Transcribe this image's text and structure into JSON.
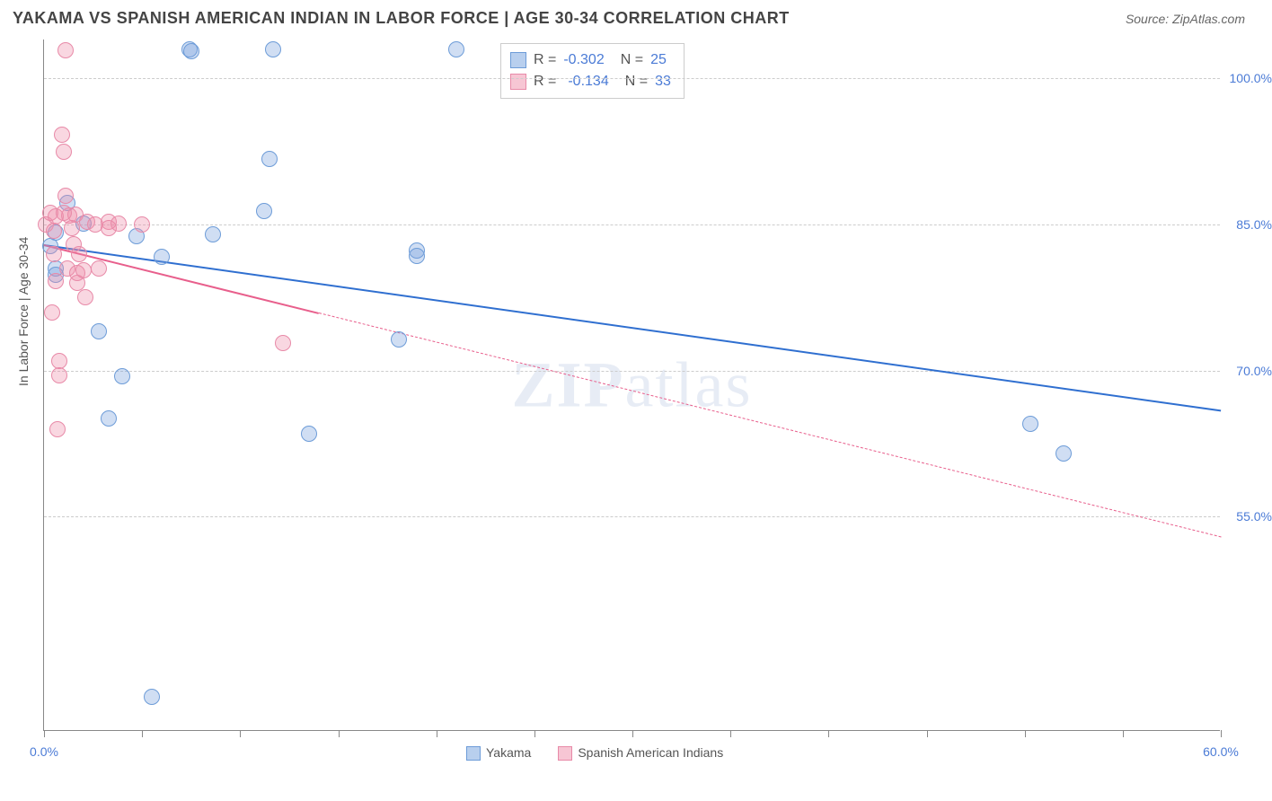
{
  "header": {
    "title": "YAKAMA VS SPANISH AMERICAN INDIAN IN LABOR FORCE | AGE 30-34 CORRELATION CHART",
    "source": "Source: ZipAtlas.com"
  },
  "chart": {
    "type": "scatter",
    "y_axis_title": "In Labor Force | Age 30-34",
    "background_color": "#ffffff",
    "grid_color": "#cccccc",
    "axis_label_color": "#4b7bd6",
    "xlim": [
      0,
      60
    ],
    "ylim": [
      33,
      104
    ],
    "y_ticks": [
      55.0,
      70.0,
      85.0,
      100.0
    ],
    "y_tick_labels": [
      "55.0%",
      "70.0%",
      "85.0%",
      "100.0%"
    ],
    "x_ticks": [
      0,
      5,
      10,
      15,
      20,
      25,
      30,
      35,
      40,
      45,
      50,
      55,
      60
    ],
    "x_tick_labels": {
      "0": "0.0%",
      "60": "60.0%"
    },
    "point_radius": 9,
    "point_stroke_width": 1.5,
    "watermark": "ZIPatlas",
    "series": [
      {
        "name": "Yakama",
        "color_fill": "rgba(120,160,220,0.35)",
        "color_stroke": "#6d9cd8",
        "swatch_fill": "#b8cfee",
        "swatch_border": "#6d9cd8",
        "r_value": "-0.302",
        "n_value": "25",
        "trend": {
          "x1": 0,
          "y1": 83.0,
          "x2": 60,
          "y2": 66.0,
          "color": "#2f6fd0",
          "width": 2,
          "solid_to_x": 60
        },
        "points": [
          [
            0.3,
            82.8
          ],
          [
            0.6,
            84.2
          ],
          [
            0.6,
            80.5
          ],
          [
            0.6,
            79.8
          ],
          [
            1.2,
            87.2
          ],
          [
            2.0,
            85.1
          ],
          [
            2.8,
            74.0
          ],
          [
            3.3,
            65.1
          ],
          [
            4.0,
            69.4
          ],
          [
            4.7,
            83.8
          ],
          [
            5.5,
            36.5
          ],
          [
            6.0,
            81.7
          ],
          [
            7.4,
            103.0
          ],
          [
            7.5,
            102.8
          ],
          [
            8.6,
            84.0
          ],
          [
            11.2,
            86.4
          ],
          [
            11.5,
            91.7
          ],
          [
            11.7,
            103.0
          ],
          [
            13.5,
            63.5
          ],
          [
            18.1,
            73.2
          ],
          [
            19.0,
            82.3
          ],
          [
            19.0,
            81.8
          ],
          [
            21.0,
            103.0
          ],
          [
            50.3,
            64.5
          ],
          [
            52.0,
            61.5
          ]
        ]
      },
      {
        "name": "Spanish American Indians",
        "color_fill": "rgba(238,140,170,0.35)",
        "color_stroke": "#e88aa8",
        "swatch_fill": "#f7c6d4",
        "swatch_border": "#e88aa8",
        "r_value": "-0.134",
        "n_value": "33",
        "trend": {
          "x1": 0,
          "y1": 83.0,
          "x2": 60,
          "y2": 53.0,
          "color": "#e85f8c",
          "width": 2,
          "solid_to_x": 14
        },
        "points": [
          [
            0.1,
            85.0
          ],
          [
            0.3,
            86.2
          ],
          [
            0.4,
            76.0
          ],
          [
            0.5,
            82.0
          ],
          [
            0.5,
            84.4
          ],
          [
            0.6,
            85.8
          ],
          [
            0.6,
            79.2
          ],
          [
            0.7,
            64.0
          ],
          [
            0.8,
            71.0
          ],
          [
            0.8,
            69.5
          ],
          [
            0.9,
            94.2
          ],
          [
            1.0,
            92.5
          ],
          [
            1.1,
            102.9
          ],
          [
            1.1,
            88.0
          ],
          [
            1.2,
            80.5
          ],
          [
            1.3,
            85.9
          ],
          [
            1.4,
            84.6
          ],
          [
            1.5,
            83.0
          ],
          [
            1.6,
            86.0
          ],
          [
            1.7,
            79.0
          ],
          [
            1.7,
            80.0
          ],
          [
            1.8,
            82.0
          ],
          [
            2.0,
            80.3
          ],
          [
            2.1,
            77.5
          ],
          [
            2.2,
            85.3
          ],
          [
            2.6,
            85.0
          ],
          [
            2.8,
            80.5
          ],
          [
            3.3,
            85.3
          ],
          [
            3.3,
            84.6
          ],
          [
            3.8,
            85.1
          ],
          [
            5.0,
            85.0
          ],
          [
            12.2,
            72.8
          ],
          [
            1.0,
            86.2
          ]
        ]
      }
    ],
    "legend": {
      "items": [
        {
          "label": "Yakama",
          "series": 0
        },
        {
          "label": "Spanish American Indians",
          "series": 1
        }
      ]
    }
  }
}
